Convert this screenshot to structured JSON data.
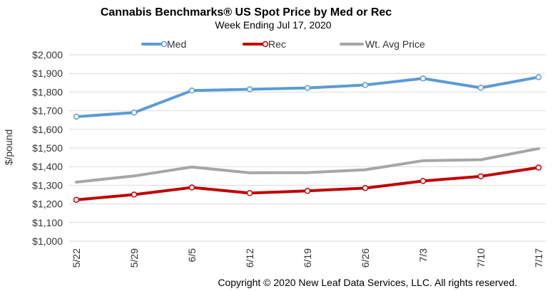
{
  "chart_data": {
    "type": "line",
    "title": "Cannabis Benchmarks® US Spot Price by Med or Rec",
    "subtitle": "Week Ending Jul 17, 2020",
    "ylabel": "$/pound",
    "xlabel": "",
    "categories": [
      "5/22",
      "5/29",
      "6/5",
      "6/12",
      "6/19",
      "6/26",
      "7/3",
      "7/10",
      "7/17"
    ],
    "ylim": [
      1000,
      2000
    ],
    "yticks": [
      1000,
      1100,
      1200,
      1300,
      1400,
      1500,
      1600,
      1700,
      1800,
      1900,
      2000
    ],
    "ytick_labels": [
      "$1,000",
      "$1,100",
      "$1,200",
      "$1,300",
      "$1,400",
      "$1,500",
      "$1,600",
      "$1,700",
      "$1,800",
      "$1,900",
      "$2,000"
    ],
    "grid": "horizontal",
    "legend": "top",
    "series": [
      {
        "name": "Med",
        "color": "#5B9BD5",
        "markers": true,
        "values": [
          1668,
          1690,
          1808,
          1815,
          1822,
          1838,
          1873,
          1823,
          1880
        ]
      },
      {
        "name": "Rec",
        "color": "#C00000",
        "markers": true,
        "values": [
          1222,
          1250,
          1288,
          1258,
          1270,
          1285,
          1323,
          1348,
          1395
        ]
      },
      {
        "name": "Wt. Avg Price",
        "color": "#A6A6A6",
        "markers": false,
        "values": [
          1317,
          1350,
          1398,
          1367,
          1368,
          1383,
          1432,
          1437,
          1497
        ]
      }
    ]
  },
  "footer": "Copyright © 2020 New Leaf Data Services, LLC. All rights reserved."
}
